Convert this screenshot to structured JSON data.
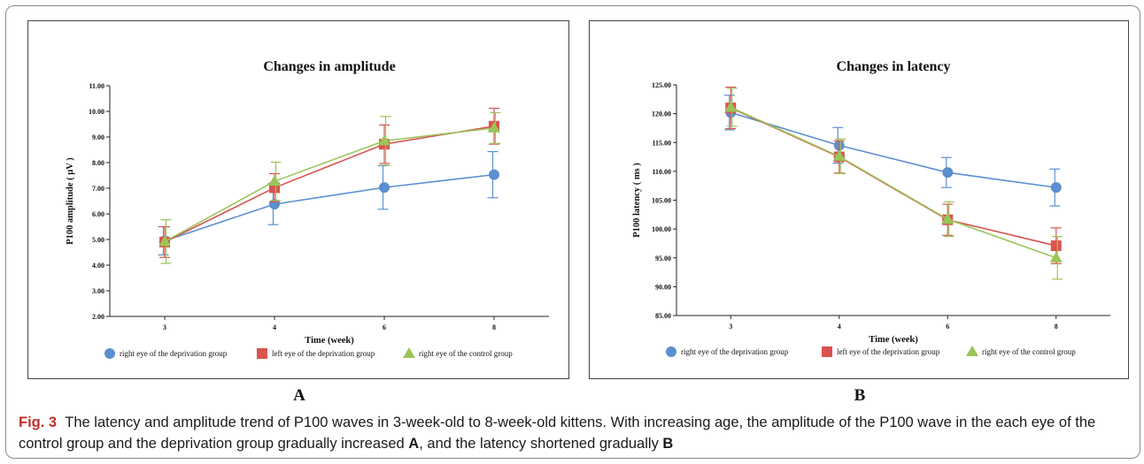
{
  "colors": {
    "right_deprivation": "#5b8fd0",
    "left_deprivation": "#d9534f",
    "right_control": "#9bc45a",
    "fig_label": "#c0302a"
  },
  "panels": {
    "a_label": "A",
    "b_label": "B"
  },
  "caption": {
    "fig_label": "Fig. 3",
    "text_1": "The latency and amplitude trend of P100 waves in 3-week-old to 8-week-old kittens. With increasing age, the amplitude of the P100 wave in the each eye of the control group and the deprivation group gradually increased ",
    "ref_a": "A",
    "text_2": ", and the latency shortened gradually ",
    "ref_b": "B"
  },
  "chart_data": [
    {
      "type": "line",
      "title": "Changes in amplitude",
      "xlabel": "Time (week)",
      "ylabel": "P100 amplitude ( μV )",
      "categories": [
        "3",
        "4",
        "6",
        "8"
      ],
      "ylim": [
        2.0,
        11.0
      ],
      "yticks": [
        "2.00",
        "3.00",
        "4.00",
        "5.00",
        "6.00",
        "7.00",
        "8.00",
        "9.00",
        "10.00",
        "11.00"
      ],
      "legend_position": "bottom",
      "series": [
        {
          "name": "right eye of the deprivation group",
          "marker": "circle",
          "color": "#5b8fd0",
          "values": [
            4.95,
            6.38,
            7.03,
            7.53
          ],
          "errors": [
            0.55,
            0.8,
            0.85,
            0.9
          ]
        },
        {
          "name": "left eye of the deprivation group",
          "marker": "square",
          "color": "#d9534f",
          "values": [
            4.9,
            7.02,
            8.72,
            9.42
          ],
          "errors": [
            0.6,
            0.55,
            0.75,
            0.7
          ]
        },
        {
          "name": "right eye of the control group",
          "marker": "triangle",
          "color": "#9bc45a",
          "values": [
            4.92,
            7.27,
            8.85,
            9.35
          ],
          "errors": [
            0.85,
            0.75,
            0.95,
            0.6
          ]
        }
      ]
    },
    {
      "type": "line",
      "title": "Changes in latency",
      "xlabel": "Time (week)",
      "ylabel": "P100 latency ( ms )",
      "categories": [
        "3",
        "4",
        "6",
        "8"
      ],
      "ylim": [
        85.0,
        125.0
      ],
      "yticks": [
        "85.00",
        "90.00",
        "95.00",
        "100.00",
        "105.00",
        "110.00",
        "115.00",
        "120.00",
        "125.00"
      ],
      "legend_position": "bottom",
      "series": [
        {
          "name": "right eye of the deprivation group",
          "marker": "circle",
          "color": "#5b8fd0",
          "values": [
            120.2,
            114.5,
            109.8,
            107.2
          ],
          "errors": [
            3.0,
            3.1,
            2.6,
            3.2
          ]
        },
        {
          "name": "left eye of the deprivation group",
          "marker": "square",
          "color": "#d9534f",
          "values": [
            121.0,
            112.5,
            101.6,
            97.1
          ],
          "errors": [
            3.6,
            2.8,
            2.7,
            3.1
          ]
        },
        {
          "name": "right eye of the control group",
          "marker": "triangle",
          "color": "#9bc45a",
          "values": [
            121.1,
            112.6,
            101.7,
            95.0
          ],
          "errors": [
            3.3,
            3.0,
            3.0,
            3.7
          ]
        }
      ]
    }
  ]
}
